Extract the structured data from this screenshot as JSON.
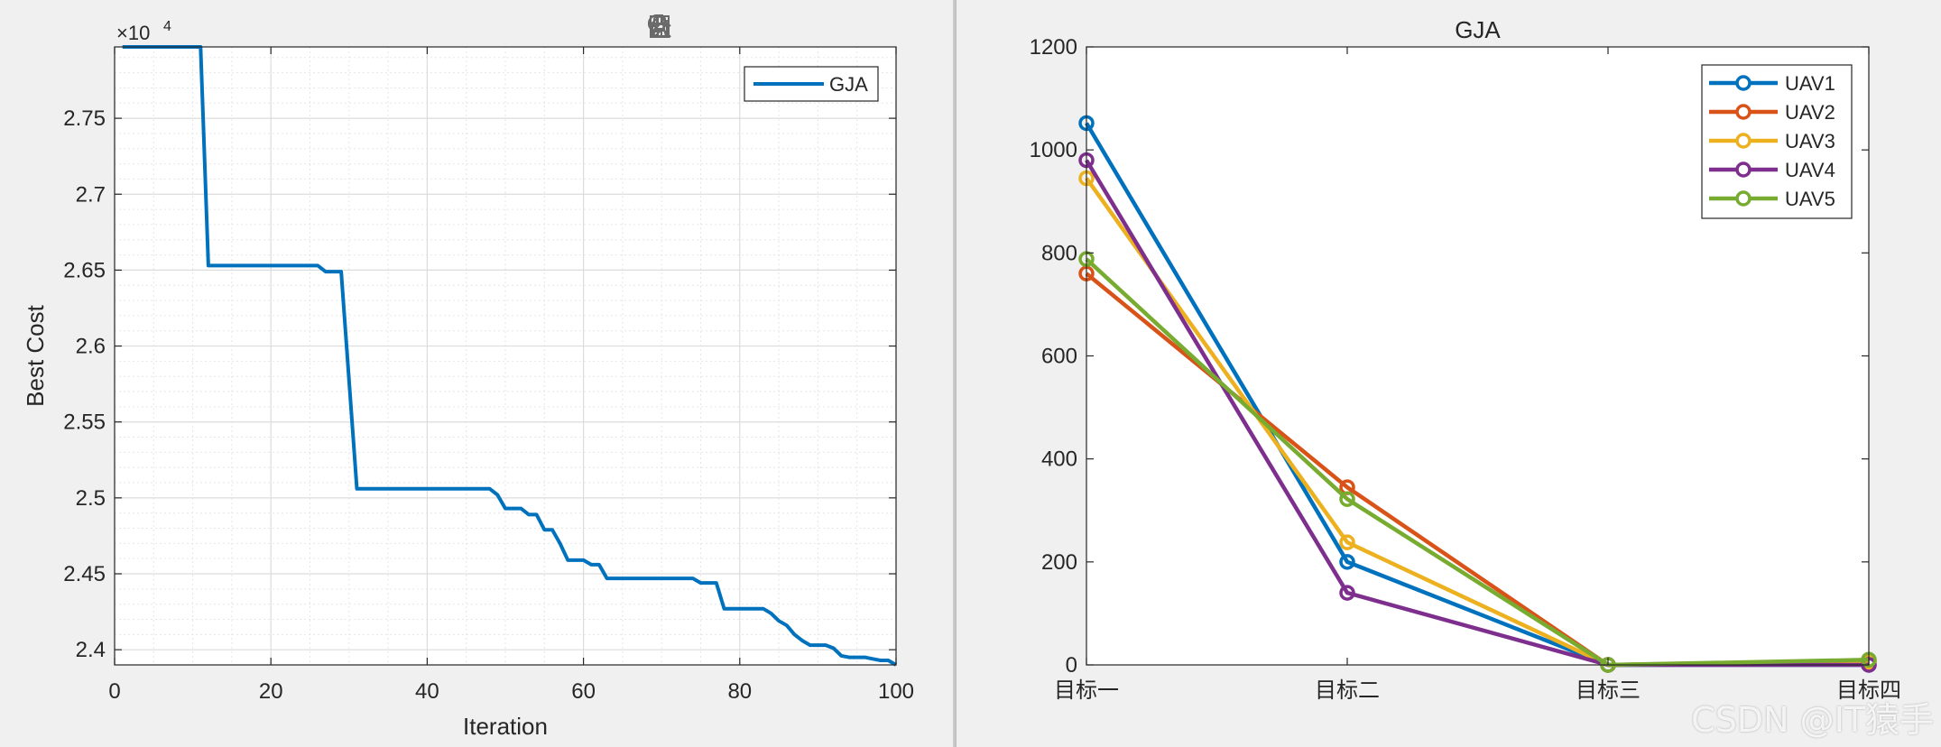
{
  "toolbar": {
    "icons": [
      "brush-edit-icon",
      "data-tip-icon",
      "legend-icon",
      "pan-hand-icon",
      "zoom-in-icon",
      "zoom-out-icon",
      "home-icon"
    ]
  },
  "watermark": "CSDN @IT猿手",
  "chart_data": [
    {
      "type": "line",
      "title": "",
      "xlabel": "Iteration",
      "ylabel": "Best Cost",
      "exponent_label": "×10",
      "exponent_value": "4",
      "xlim": [
        0,
        100
      ],
      "ylim": [
        2.39,
        2.797
      ],
      "xticks": [
        0,
        20,
        40,
        60,
        80,
        100
      ],
      "xtick_labels": [
        "0",
        "20",
        "40",
        "60",
        "80",
        "100"
      ],
      "yticks": [
        2.4,
        2.45,
        2.5,
        2.55,
        2.6,
        2.65,
        2.7,
        2.75
      ],
      "ytick_labels": [
        "2.4",
        "2.45",
        "2.5",
        "2.55",
        "2.6",
        "2.65",
        "2.7",
        "2.75"
      ],
      "grid": true,
      "minor_grid": true,
      "legend_position": "top-right",
      "series": [
        {
          "name": "GJA",
          "color": "#0072BD",
          "x": [
            1,
            11,
            12,
            26,
            27,
            29,
            31,
            48,
            49,
            50,
            52,
            53,
            54,
            55,
            56,
            57,
            58,
            59,
            60,
            61,
            62,
            63,
            74,
            75,
            77,
            78,
            83,
            84,
            85,
            86,
            87,
            88,
            89,
            90,
            91,
            92,
            93,
            94,
            95,
            96,
            97,
            98,
            99,
            100
          ],
          "y": [
            2.797,
            2.797,
            2.653,
            2.653,
            2.649,
            2.649,
            2.506,
            2.506,
            2.502,
            2.493,
            2.493,
            2.489,
            2.489,
            2.479,
            2.479,
            2.47,
            2.459,
            2.459,
            2.459,
            2.456,
            2.456,
            2.447,
            2.447,
            2.444,
            2.444,
            2.427,
            2.427,
            2.424,
            2.419,
            2.416,
            2.41,
            2.406,
            2.403,
            2.403,
            2.403,
            2.401,
            2.396,
            2.395,
            2.395,
            2.395,
            2.394,
            2.393,
            2.393,
            2.39
          ]
        }
      ]
    },
    {
      "type": "line",
      "title": "GJA",
      "xlabel": "",
      "ylabel": "",
      "categories": [
        "目标一",
        "目标二",
        "目标三",
        "目标四"
      ],
      "ylim": [
        0,
        1200
      ],
      "yticks": [
        0,
        200,
        400,
        600,
        800,
        1000,
        1200
      ],
      "ytick_labels": [
        "0",
        "200",
        "400",
        "600",
        "800",
        "1000",
        "1200"
      ],
      "grid": false,
      "legend_position": "top-right",
      "marker": "circle",
      "series": [
        {
          "name": "UAV1",
          "color": "#0072BD",
          "values": [
            1052,
            200,
            0,
            0
          ]
        },
        {
          "name": "UAV2",
          "color": "#D95319",
          "values": [
            760,
            345,
            0,
            8
          ]
        },
        {
          "name": "UAV3",
          "color": "#EDB120",
          "values": [
            945,
            238,
            0,
            5
          ]
        },
        {
          "name": "UAV4",
          "color": "#7E2F8E",
          "values": [
            980,
            140,
            0,
            0
          ]
        },
        {
          "name": "UAV5",
          "color": "#77AC30",
          "values": [
            788,
            322,
            0,
            10
          ]
        }
      ]
    }
  ]
}
